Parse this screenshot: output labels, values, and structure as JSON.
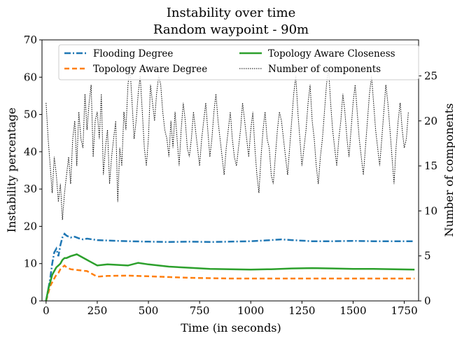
{
  "chart_data": {
    "type": "line",
    "title": "Instability over time",
    "subtitle": "Random waypoint - 90m",
    "xlabel": "Time (in seconds)",
    "ylabel_left": "Instability percentage",
    "ylabel_right": "Number of components",
    "xlim": [
      -20,
      1820
    ],
    "ylim_left": [
      0,
      70
    ],
    "ylim_right": [
      0,
      29
    ],
    "xticks": [
      0,
      250,
      500,
      750,
      1000,
      1250,
      1500,
      1750
    ],
    "yticks_left": [
      0,
      10,
      20,
      30,
      40,
      50,
      60,
      70
    ],
    "yticks_right": [
      0,
      5,
      10,
      15,
      20,
      25
    ],
    "grid": false,
    "legend_placement": "top",
    "series": [
      {
        "name": "Flooding Degree",
        "axis": "left",
        "color": "#1f77b4",
        "style": "dashdot",
        "x": [
          0,
          10,
          20,
          30,
          40,
          50,
          60,
          70,
          80,
          90,
          100,
          120,
          140,
          160,
          180,
          200,
          250,
          300,
          350,
          400,
          500,
          600,
          700,
          800,
          900,
          1000,
          1100,
          1150,
          1200,
          1300,
          1400,
          1500,
          1600,
          1700,
          1800
        ],
        "y": [
          0,
          3,
          6,
          10,
          13,
          14,
          12,
          15,
          17,
          18,
          17.5,
          17,
          17.2,
          16.8,
          16.5,
          16.7,
          16.3,
          16.2,
          16.1,
          16.0,
          15.9,
          15.8,
          15.9,
          15.8,
          15.9,
          16.0,
          16.3,
          16.5,
          16.3,
          16.0,
          16.0,
          16.1,
          16.0,
          16.0,
          16.0
        ]
      },
      {
        "name": "Topology Aware Degree",
        "axis": "left",
        "color": "#ff7f0e",
        "style": "dashed",
        "x": [
          0,
          10,
          20,
          30,
          40,
          50,
          60,
          70,
          80,
          90,
          100,
          120,
          150,
          200,
          250,
          300,
          400,
          500,
          600,
          700,
          800,
          900,
          1000,
          1100,
          1200,
          1300,
          1400,
          1500,
          1600,
          1700,
          1800
        ],
        "y": [
          0,
          2,
          4,
          5,
          6,
          7,
          7.5,
          8.5,
          9,
          9.5,
          9,
          8.5,
          8.3,
          8,
          6.5,
          6.7,
          6.8,
          6.6,
          6.4,
          6.2,
          6.1,
          6.0,
          6.0,
          6.0,
          6.0,
          6.0,
          6.0,
          6.0,
          6.0,
          6.0,
          6.0
        ]
      },
      {
        "name": "Topology Aware Closeness",
        "axis": "left",
        "color": "#2ca02c",
        "style": "solid",
        "x": [
          0,
          10,
          20,
          30,
          40,
          50,
          60,
          70,
          80,
          90,
          100,
          120,
          150,
          200,
          250,
          300,
          400,
          450,
          500,
          600,
          700,
          800,
          900,
          1000,
          1100,
          1200,
          1300,
          1400,
          1500,
          1600,
          1700,
          1800
        ],
        "y": [
          0,
          3,
          5,
          7,
          8,
          9,
          9.5,
          10,
          11,
          11.5,
          11.5,
          12,
          12.5,
          11,
          9.5,
          9.8,
          9.5,
          10.2,
          9.8,
          9.2,
          8.9,
          8.6,
          8.5,
          8.4,
          8.5,
          8.7,
          8.8,
          8.7,
          8.6,
          8.6,
          8.5,
          8.4
        ]
      },
      {
        "name": "Number of components",
        "axis": "right",
        "color": "#000000",
        "style": "dotted",
        "x_start": 0,
        "x_step": 10,
        "y": [
          22,
          18,
          15,
          12,
          16,
          14,
          11,
          13,
          9,
          12,
          14,
          16,
          13,
          18,
          20,
          15,
          21,
          18,
          17,
          23,
          19,
          22,
          24,
          16,
          20,
          21,
          18,
          23,
          14,
          17,
          19,
          13,
          16,
          18,
          20,
          11,
          17,
          15,
          21,
          19,
          24,
          26,
          22,
          18,
          20,
          23,
          25,
          21,
          17,
          15,
          18,
          24,
          22,
          20,
          23,
          25,
          24,
          21,
          19,
          18,
          16,
          20,
          17,
          21,
          18,
          15,
          19,
          22,
          20,
          17,
          16,
          18,
          21,
          19,
          17,
          15,
          18,
          20,
          22,
          19,
          16,
          18,
          21,
          23,
          20,
          18,
          16,
          14,
          17,
          19,
          21,
          18,
          16,
          15,
          17,
          19,
          22,
          20,
          18,
          16,
          19,
          21,
          17,
          14,
          12,
          16,
          19,
          21,
          18,
          17,
          14,
          13,
          16,
          19,
          21,
          20,
          18,
          16,
          14,
          17,
          20,
          23,
          25,
          21,
          18,
          15,
          17,
          19,
          22,
          24,
          20,
          18,
          15,
          13,
          16,
          18,
          21,
          24,
          26,
          22,
          19,
          17,
          15,
          18,
          20,
          23,
          21,
          18,
          16,
          19,
          22,
          24,
          21,
          18,
          16,
          14,
          17,
          20,
          23,
          25,
          22,
          19,
          17,
          15,
          18,
          21,
          24,
          22,
          19,
          16,
          13,
          17,
          20,
          22,
          19,
          17,
          18,
          21
        ]
      }
    ]
  }
}
